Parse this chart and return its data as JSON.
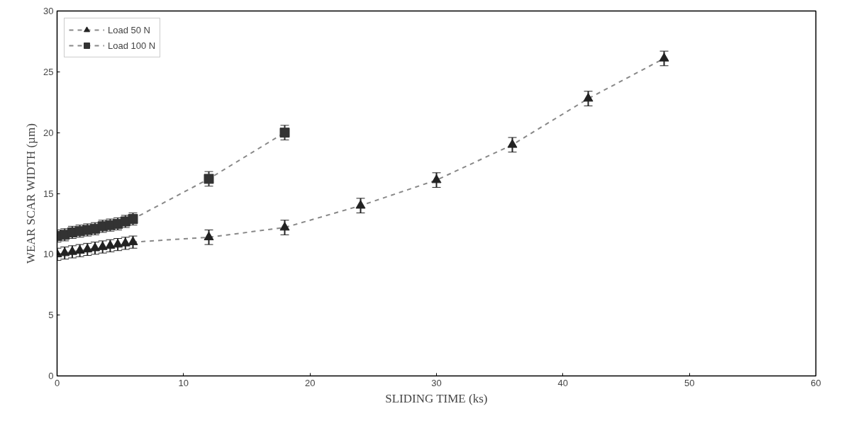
{
  "chart_data": {
    "type": "line",
    "xlabel": "SLIDING TIME (ks)",
    "ylabel": "WEAR SCAR WIDTH (µm)",
    "xlim": [
      0,
      60
    ],
    "xticks": [
      0,
      10,
      20,
      30,
      40,
      50,
      60
    ],
    "ylim": [
      0,
      30
    ],
    "yticks": [
      0,
      5,
      10,
      15,
      20,
      25,
      30
    ],
    "grid": false,
    "legend": "top left",
    "line_style": "dashed",
    "series": [
      {
        "name": "Load 50 N",
        "color": "#222222",
        "marker": "triangle",
        "x": [
          0,
          0.6,
          1.2,
          1.8,
          2.4,
          3,
          3.6,
          4.2,
          4.8,
          5.4,
          6,
          12,
          18,
          24,
          30,
          36,
          42,
          48
        ],
        "values": [
          10.0,
          10.1,
          10.2,
          10.3,
          10.4,
          10.5,
          10.6,
          10.7,
          10.8,
          10.9,
          11.0,
          11.4,
          12.2,
          14.0,
          16.1,
          19.0,
          22.8,
          26.1
        ],
        "errors": [
          0.5,
          0.5,
          0.5,
          0.5,
          0.5,
          0.5,
          0.5,
          0.5,
          0.5,
          0.5,
          0.5,
          0.6,
          0.6,
          0.6,
          0.6,
          0.6,
          0.6,
          0.6
        ]
      },
      {
        "name": "Load 100 N",
        "color": "#333333",
        "marker": "square",
        "x": [
          0,
          0.6,
          1.2,
          1.8,
          2.4,
          3,
          3.6,
          4.2,
          4.8,
          5.4,
          6,
          12,
          18
        ],
        "values": [
          11.5,
          11.6,
          11.8,
          11.9,
          12.0,
          12.1,
          12.3,
          12.4,
          12.5,
          12.7,
          12.9,
          16.2,
          20.0
        ],
        "errors": [
          0.5,
          0.5,
          0.5,
          0.5,
          0.5,
          0.5,
          0.5,
          0.5,
          0.5,
          0.5,
          0.5,
          0.6,
          0.6
        ]
      }
    ]
  }
}
